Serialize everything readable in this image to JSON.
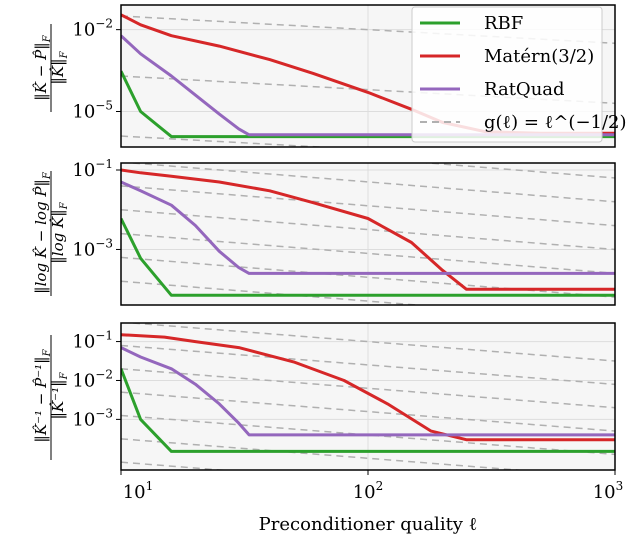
{
  "chart_data": [
    {
      "type": "line",
      "ylabel": {
        "numerator": "‖K̂ − P̂‖",
        "denominator": "‖K̂‖",
        "subscript": "F"
      },
      "x_scale": "log",
      "y_scale": "log",
      "xlim": [
        10,
        1000
      ],
      "ylim": [
        5e-07,
        0.08
      ],
      "yticks": [
        {
          "value": 0.01,
          "label": "10",
          "exp": "−2"
        },
        {
          "value": 1e-05,
          "label": "10",
          "exp": "−5"
        }
      ],
      "grid": true,
      "series": [
        {
          "name": "RBF",
          "color": "#2ca02c",
          "x": [
            10,
            12,
            16,
            1000
          ],
          "y": [
            0.0003,
            1e-05,
            1.2e-06,
            1.2e-06
          ]
        },
        {
          "name": "Matérn(3/2)",
          "color": "#d62728",
          "x": [
            10,
            12,
            16,
            25,
            40,
            60,
            100,
            150,
            200,
            300,
            500,
            1000
          ],
          "y": [
            0.035,
            0.015,
            0.006,
            0.0025,
            0.0008,
            0.00025,
            5e-05,
            1.2e-05,
            4e-06,
            1.8e-06,
            1.6e-06,
            1.6e-06
          ]
        },
        {
          "name": "RatQuad",
          "color": "#9467bd",
          "x": [
            10,
            12,
            16,
            20,
            25,
            30,
            33,
            1000
          ],
          "y": [
            0.006,
            0.0013,
            0.0002,
            4e-05,
            8e-06,
            2.3e-06,
            1.4e-06,
            1.4e-06
          ]
        }
      ],
      "reference_lines": {
        "name": "g(ℓ) = ℓ^(−1/2)",
        "color": "#b0b0b0",
        "log_offsets": [
          1.2,
          -1.0,
          -3.2,
          -5.4,
          -7.6,
          -9.8,
          -12.0,
          -14.2
        ]
      }
    },
    {
      "type": "line",
      "ylabel": {
        "numerator": "‖log K̂ − log P̂‖",
        "denominator": "‖log K̂‖",
        "subscript": "F"
      },
      "x_scale": "log",
      "y_scale": "log",
      "xlim": [
        10,
        1000
      ],
      "ylim": [
        4e-05,
        0.15
      ],
      "yticks": [
        {
          "value": 0.1,
          "label": "10",
          "exp": "−1"
        },
        {
          "value": 0.001,
          "label": "10",
          "exp": "−3"
        }
      ],
      "grid": true,
      "series": [
        {
          "name": "RBF",
          "color": "#2ca02c",
          "x": [
            10,
            12,
            16,
            1000
          ],
          "y": [
            0.006,
            0.0006,
            7e-05,
            7e-05
          ]
        },
        {
          "name": "Matérn(3/2)",
          "color": "#d62728",
          "x": [
            10,
            12,
            16,
            25,
            40,
            60,
            100,
            150,
            200,
            250,
            1000
          ],
          "y": [
            0.1,
            0.085,
            0.07,
            0.05,
            0.03,
            0.015,
            0.006,
            0.0015,
            0.0003,
            0.0001,
            0.0001
          ]
        },
        {
          "name": "RatQuad",
          "color": "#9467bd",
          "x": [
            10,
            12,
            16,
            20,
            25,
            30,
            33,
            1000
          ],
          "y": [
            0.05,
            0.03,
            0.013,
            0.004,
            0.0009,
            0.00035,
            0.00025,
            0.00025
          ]
        }
      ],
      "reference_lines": {
        "name": "g(ℓ) = ℓ^(−1/2)",
        "color": "#b0b0b0",
        "log_offsets": [
          0.3,
          -0.3,
          -0.9,
          -1.5,
          -2.1,
          -2.7,
          -3.3,
          -3.9,
          -4.5
        ]
      }
    },
    {
      "type": "line",
      "ylabel": {
        "numerator": "‖K̂⁻¹ − P̂⁻¹‖",
        "denominator": "‖K̂⁻¹‖",
        "subscript": "F"
      },
      "x_scale": "log",
      "y_scale": "log",
      "xlim": [
        10,
        1000
      ],
      "ylim": [
        5e-05,
        0.3
      ],
      "yticks": [
        {
          "value": 0.1,
          "label": "10",
          "exp": "−1"
        },
        {
          "value": 0.01,
          "label": "10",
          "exp": "−2"
        },
        {
          "value": 0.001,
          "label": "10",
          "exp": "−3"
        }
      ],
      "xticks": [
        {
          "value": 10,
          "label": "10",
          "exp": "1"
        },
        {
          "value": 100,
          "label": "10",
          "exp": "2"
        },
        {
          "value": 1000,
          "label": "10",
          "exp": "3"
        }
      ],
      "xlabel": "Preconditioner quality ℓ",
      "grid": true,
      "series": [
        {
          "name": "RBF",
          "color": "#2ca02c",
          "x": [
            10,
            12,
            16,
            1000
          ],
          "y": [
            0.02,
            0.001,
            0.00015,
            0.00015
          ]
        },
        {
          "name": "Matérn(3/2)",
          "color": "#d62728",
          "x": [
            10,
            15,
            20,
            30,
            50,
            80,
            120,
            180,
            250,
            1000
          ],
          "y": [
            0.15,
            0.13,
            0.1,
            0.07,
            0.03,
            0.01,
            0.0025,
            0.0005,
            0.0003,
            0.0003
          ]
        },
        {
          "name": "RatQuad",
          "color": "#9467bd",
          "x": [
            10,
            12,
            16,
            20,
            25,
            30,
            33,
            1000
          ],
          "y": [
            0.07,
            0.04,
            0.02,
            0.008,
            0.0025,
            0.0008,
            0.0004,
            0.0004
          ]
        }
      ],
      "reference_lines": {
        "name": "g(ℓ) = ℓ^(−1/2)",
        "color": "#b0b0b0",
        "log_offsets": [
          0.0,
          -0.6,
          -1.2,
          -1.8,
          -2.4,
          -3.0,
          -3.6,
          -4.2,
          -4.8
        ]
      }
    }
  ],
  "legend": {
    "placement": "top-right",
    "entries": [
      {
        "label": "RBF",
        "color": "#2ca02c"
      },
      {
        "label": "Matérn(3/2)",
        "color": "#d62728"
      },
      {
        "label": "RatQuad",
        "color": "#9467bd"
      },
      {
        "label": "g(ℓ) = ℓ^(−1/2)",
        "color": "#b0b0b0"
      }
    ]
  }
}
